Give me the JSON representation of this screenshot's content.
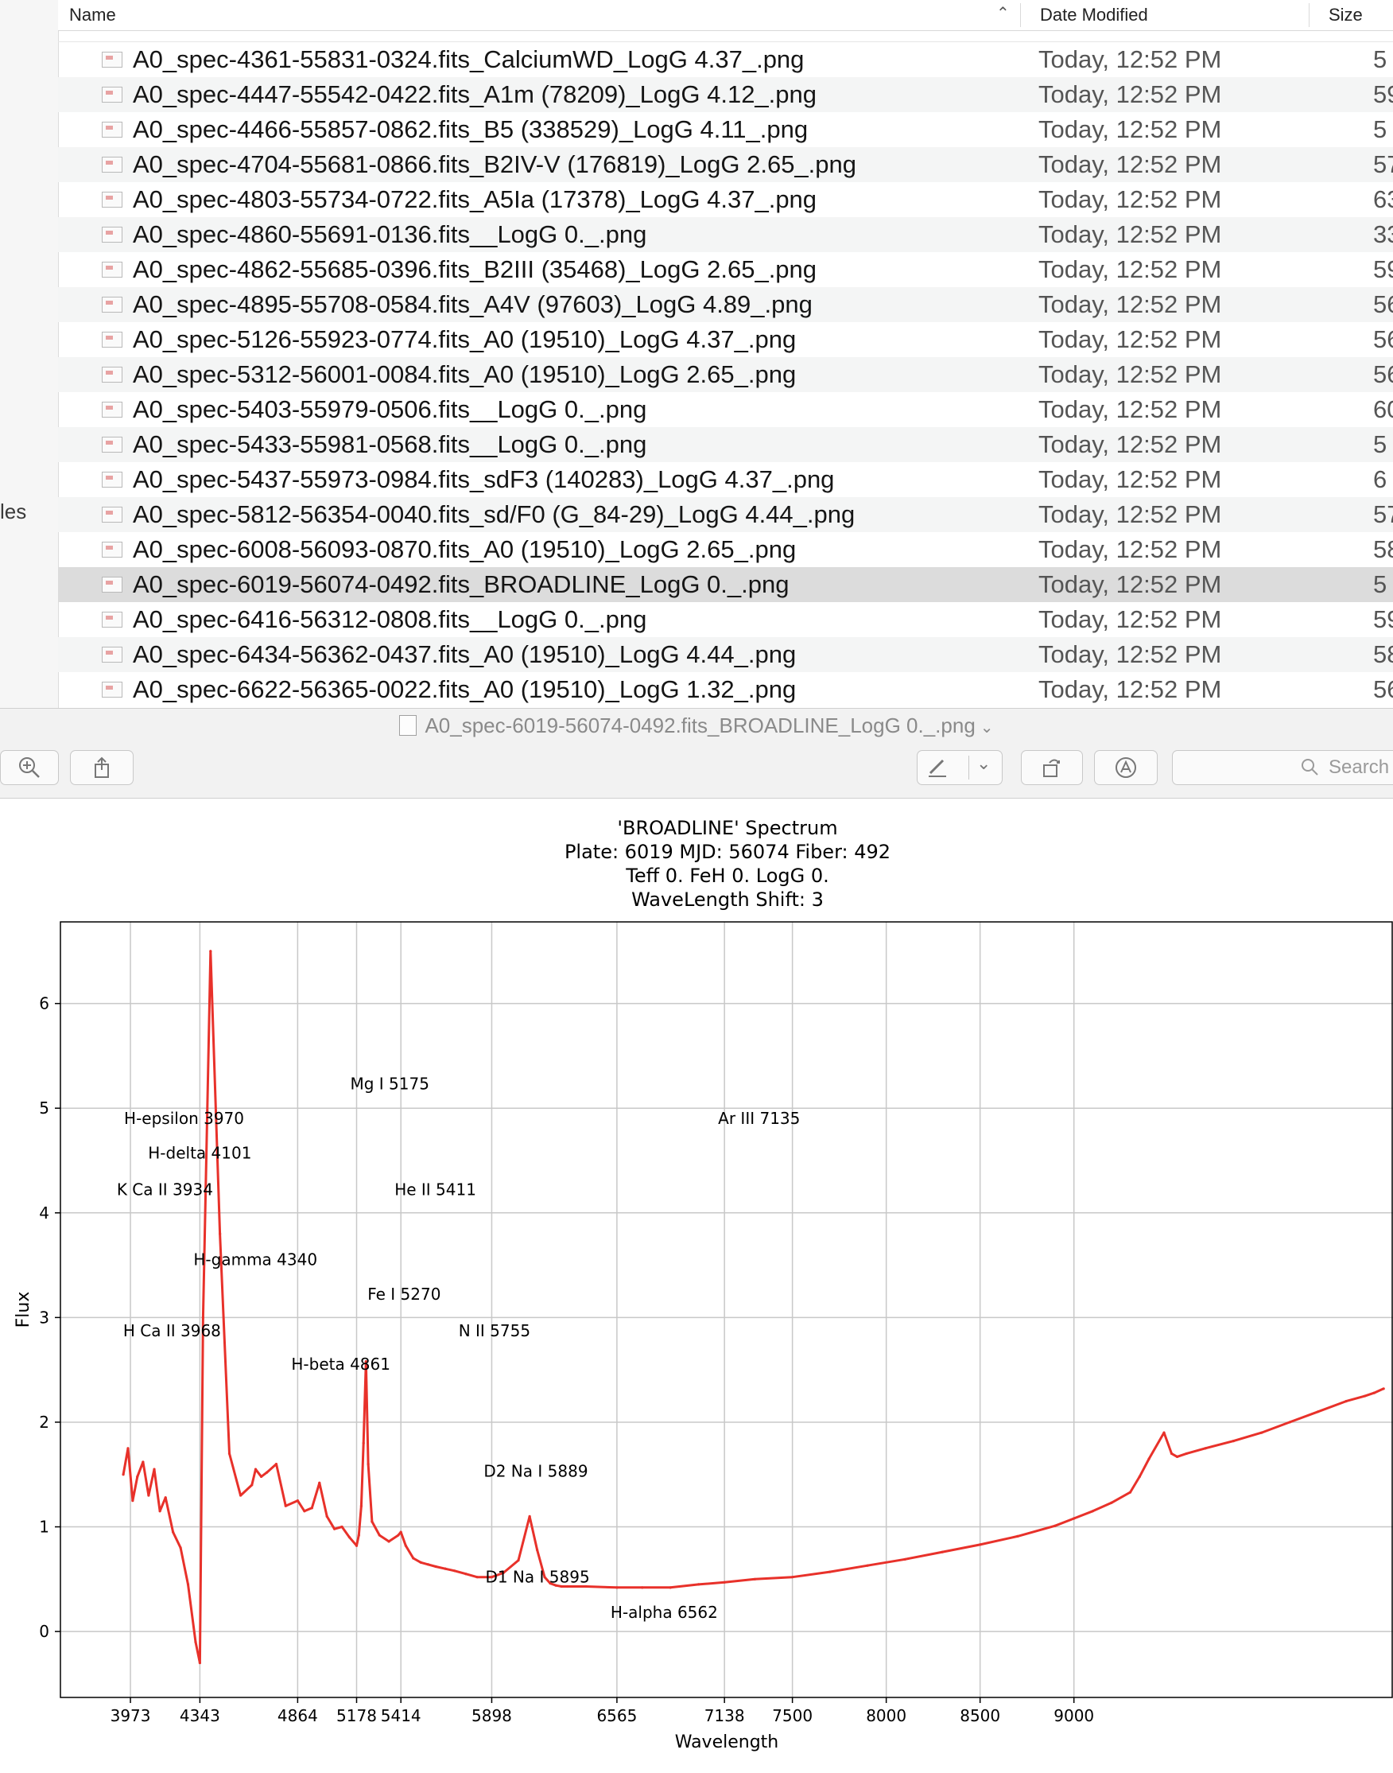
{
  "finder": {
    "sidebar_fragment": "les",
    "columns": {
      "name": "Name",
      "date": "Date Modified",
      "size": "Size"
    },
    "rows": [
      {
        "name": "A0_spec-4361-55831-0324.fits_CalciumWD_LogG 4.37_.png",
        "date": "Today, 12:52 PM",
        "size": "5"
      },
      {
        "name": "A0_spec-4447-55542-0422.fits_A1m (78209)_LogG 4.12_.png",
        "date": "Today, 12:52 PM",
        "size": "59"
      },
      {
        "name": "A0_spec-4466-55857-0862.fits_B5 (338529)_LogG 4.11_.png",
        "date": "Today, 12:52 PM",
        "size": "5"
      },
      {
        "name": "A0_spec-4704-55681-0866.fits_B2IV-V (176819)_LogG 2.65_.png",
        "date": "Today, 12:52 PM",
        "size": "57"
      },
      {
        "name": "A0_spec-4803-55734-0722.fits_A5Ia (17378)_LogG 4.37_.png",
        "date": "Today, 12:52 PM",
        "size": "63"
      },
      {
        "name": "A0_spec-4860-55691-0136.fits__LogG 0._.png",
        "date": "Today, 12:52 PM",
        "size": "33"
      },
      {
        "name": "A0_spec-4862-55685-0396.fits_B2III (35468)_LogG 2.65_.png",
        "date": "Today, 12:52 PM",
        "size": "59"
      },
      {
        "name": "A0_spec-4895-55708-0584.fits_A4V (97603)_LogG 4.89_.png",
        "date": "Today, 12:52 PM",
        "size": "56"
      },
      {
        "name": "A0_spec-5126-55923-0774.fits_A0 (19510)_LogG 4.37_.png",
        "date": "Today, 12:52 PM",
        "size": "56"
      },
      {
        "name": "A0_spec-5312-56001-0084.fits_A0 (19510)_LogG 2.65_.png",
        "date": "Today, 12:52 PM",
        "size": "56"
      },
      {
        "name": "A0_spec-5403-55979-0506.fits__LogG 0._.png",
        "date": "Today, 12:52 PM",
        "size": "60"
      },
      {
        "name": "A0_spec-5433-55981-0568.fits__LogG 0._.png",
        "date": "Today, 12:52 PM",
        "size": "5"
      },
      {
        "name": "A0_spec-5437-55973-0984.fits_sdF3 (140283)_LogG 4.37_.png",
        "date": "Today, 12:52 PM",
        "size": "6"
      },
      {
        "name": "A0_spec-5812-56354-0040.fits_sd/F0 (G_84-29)_LogG 4.44_.png",
        "date": "Today, 12:52 PM",
        "size": "57"
      },
      {
        "name": "A0_spec-6008-56093-0870.fits_A0 (19510)_LogG 2.65_.png",
        "date": "Today, 12:52 PM",
        "size": "58"
      },
      {
        "name": "A0_spec-6019-56074-0492.fits_BROADLINE_LogG 0._.png",
        "date": "Today, 12:52 PM",
        "size": "5"
      },
      {
        "name": "A0_spec-6416-56312-0808.fits__LogG 0._.png",
        "date": "Today, 12:52 PM",
        "size": "59"
      },
      {
        "name": "A0_spec-6434-56362-0437.fits_A0 (19510)_LogG 4.44_.png",
        "date": "Today, 12:52 PM",
        "size": "58"
      },
      {
        "name": "A0_spec-6622-56365-0022.fits_A0 (19510)_LogG 1.32_.png",
        "date": "Today, 12:52 PM",
        "size": "56"
      }
    ],
    "selected_row": 15
  },
  "preview": {
    "title": "A0_spec-6019-56074-0492.fits_BROADLINE_LogG 0._.png",
    "search_placeholder": "Search",
    "icons": {
      "zoom": "zoom-in-icon",
      "share": "share-icon",
      "markup": "markup-pen-icon",
      "rotate": "rotate-icon",
      "annotate": "annotate-icon",
      "search": "search-icon"
    }
  },
  "chart_data": {
    "type": "line",
    "title_lines": [
      "'BROADLINE' Spectrum",
      "Plate: 6019 MJD: 56074 Fiber: 492",
      "Teff 0. FeH 0. LogG 0.",
      "WaveLength Shift: 3"
    ],
    "xlabel": "Wavelength",
    "ylabel": "Flux",
    "xlim": [
      3600,
      10700
    ],
    "ylim": [
      -0.63,
      6.78
    ],
    "xticks": [
      3973,
      4343,
      4864,
      5178,
      5414,
      5898,
      6565,
      7138,
      7500,
      8000,
      8500,
      9000
    ],
    "yticks": [
      0,
      1,
      2,
      3,
      4,
      5,
      6
    ],
    "grid": true,
    "line_color": "#e8312a",
    "line_labels": [
      {
        "text": "Mg I 5175",
        "x": 5178,
        "y": 5.18
      },
      {
        "text": "H-epsilon 3970",
        "x": 3973,
        "y": 4.85
      },
      {
        "text": "Ar III 7135",
        "x": 7138,
        "y": 4.85
      },
      {
        "text": "H-delta 4101",
        "x": 4101,
        "y": 4.52
      },
      {
        "text": "K Ca II 3934",
        "x": 3934,
        "y": 4.17
      },
      {
        "text": "He II 5411",
        "x": 5414,
        "y": 4.17
      },
      {
        "text": "H-gamma 4340",
        "x": 4343,
        "y": 3.5
      },
      {
        "text": "Fe I 5270",
        "x": 5270,
        "y": 3.17
      },
      {
        "text": "H Ca II 3968",
        "x": 3968,
        "y": 2.82
      },
      {
        "text": "N II 5755",
        "x": 5755,
        "y": 2.82
      },
      {
        "text": "H-beta 4861",
        "x": 4864,
        "y": 2.5
      },
      {
        "text": "D2 Na I 5889",
        "x": 5889,
        "y": 1.48
      },
      {
        "text": "D1 Na I 5895",
        "x": 5898,
        "y": 0.47
      },
      {
        "text": "H-alpha 6562",
        "x": 6565,
        "y": 0.13
      }
    ],
    "series": [
      {
        "x": [
          3935,
          3960,
          3985,
          4010,
          4040,
          4070,
          4100,
          4130,
          4160,
          4200,
          4240,
          4280,
          4320,
          4343,
          4360,
          4400,
          4450,
          4500,
          4560,
          4620,
          4640,
          4670,
          4700,
          4750,
          4800,
          4864,
          4900,
          4940,
          4980,
          5020,
          5060,
          5100,
          5140,
          5178,
          5190,
          5203,
          5215,
          5228,
          5240,
          5260,
          5300,
          5350,
          5400,
          5414,
          5440,
          5480,
          5520,
          5560,
          5600,
          5650,
          5700,
          5760,
          5820,
          5898,
          5960,
          6040,
          6100,
          6140,
          6180,
          6210,
          6240,
          6270,
          6300,
          6400,
          6565,
          6700,
          6850,
          7000,
          7138,
          7300,
          7500,
          7700,
          7900,
          8100,
          8300,
          8500,
          8700,
          8900,
          9000,
          9100,
          9200,
          9300,
          9350,
          9400,
          9480,
          9520,
          9550,
          9600,
          9700,
          9850,
          10000,
          10150,
          10300,
          10450,
          10550,
          10600,
          10650
        ],
        "values": [
          1.5,
          1.75,
          1.25,
          1.48,
          1.62,
          1.3,
          1.55,
          1.15,
          1.28,
          0.95,
          0.8,
          0.45,
          -0.1,
          -0.3,
          3.0,
          6.5,
          3.8,
          1.7,
          1.3,
          1.4,
          1.55,
          1.48,
          1.52,
          1.6,
          1.2,
          1.25,
          1.15,
          1.18,
          1.42,
          1.1,
          0.98,
          1.0,
          0.9,
          0.82,
          0.92,
          1.2,
          1.8,
          2.58,
          1.6,
          1.05,
          0.92,
          0.86,
          0.92,
          0.95,
          0.82,
          0.7,
          0.66,
          0.64,
          0.62,
          0.6,
          0.58,
          0.55,
          0.52,
          0.52,
          0.56,
          0.68,
          1.1,
          0.78,
          0.52,
          0.46,
          0.44,
          0.43,
          0.43,
          0.43,
          0.42,
          0.42,
          0.42,
          0.45,
          0.47,
          0.5,
          0.52,
          0.57,
          0.63,
          0.69,
          0.76,
          0.83,
          0.91,
          1.01,
          1.08,
          1.15,
          1.23,
          1.33,
          1.48,
          1.65,
          1.9,
          1.7,
          1.67,
          1.7,
          1.75,
          1.82,
          1.9,
          2.0,
          2.1,
          2.2,
          2.25,
          2.28,
          2.32
        ]
      }
    ]
  }
}
